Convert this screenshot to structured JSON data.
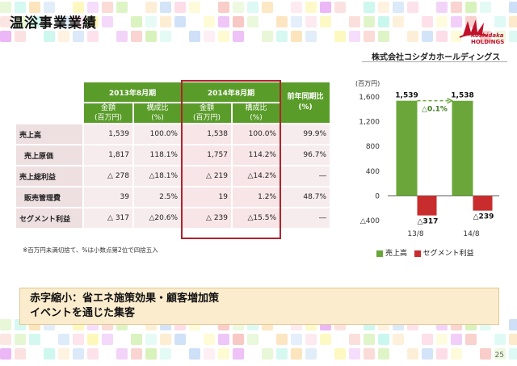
{
  "header": {
    "title": "温浴事業業績",
    "logo_line1": "Koshidaka",
    "logo_line2": "HOLDINGS",
    "company": "株式会社コシダカホールディングス"
  },
  "table": {
    "group_2013": "2013年8月期",
    "group_2014": "2014年8月期",
    "group_yoy": "前年同期比",
    "yoy_unit": "(%)",
    "col_amount": "金額",
    "col_amount_unit": "(百万円)",
    "col_ratio": "構成比",
    "col_ratio_unit": "(%)",
    "rows": [
      {
        "label": "売上高",
        "a13": "1,539",
        "r13": "100.0%",
        "a14": "1,538",
        "r14": "100.0%",
        "yoy": "99.9%"
      },
      {
        "label": "売上原価",
        "a13": "1,817",
        "r13": "118.1%",
        "a14": "1,757",
        "r14": "114.2%",
        "yoy": "96.7%"
      },
      {
        "label": "売上総利益",
        "a13": "△ 278",
        "r13": "△18.1%",
        "a14": "△ 219",
        "r14": "△14.2%",
        "yoy": "―"
      },
      {
        "label": "販売管理費",
        "a13": "39",
        "r13": "2.5%",
        "a14": "19",
        "r14": "1.2%",
        "yoy": "48.7%"
      },
      {
        "label": "セグメント利益",
        "a13": "△ 317",
        "r13": "△20.6%",
        "a14": "△ 239",
        "r14": "△15.5%",
        "yoy": "―"
      }
    ],
    "note": "※百万円未満切捨て、%は小数点第2位で四捨五入"
  },
  "chart_data": {
    "type": "bar",
    "title": "",
    "ylabel": "(百万円)",
    "categories": [
      "13/8",
      "14/8"
    ],
    "series": [
      {
        "name": "売上高",
        "color": "#6aa63a",
        "values": [
          1539,
          1538
        ],
        "labels": [
          "1,539",
          "1,538"
        ]
      },
      {
        "name": "セグメント利益",
        "color": "#c82c2c",
        "values": [
          -317,
          -239
        ],
        "labels": [
          "△317",
          "△239"
        ]
      }
    ],
    "ylim": [
      -400,
      1600
    ],
    "yticks": [
      1600,
      1200,
      800,
      400,
      0,
      -400
    ],
    "ytick_labels": [
      "1,600",
      "1,200",
      "800",
      "400",
      "0",
      "△400"
    ],
    "annotation": "△0.1%"
  },
  "summary": {
    "line1": "赤字縮小：省エネ施策効果・顧客増加策",
    "line2": "イベントを通じた集客"
  },
  "page_number": "25"
}
